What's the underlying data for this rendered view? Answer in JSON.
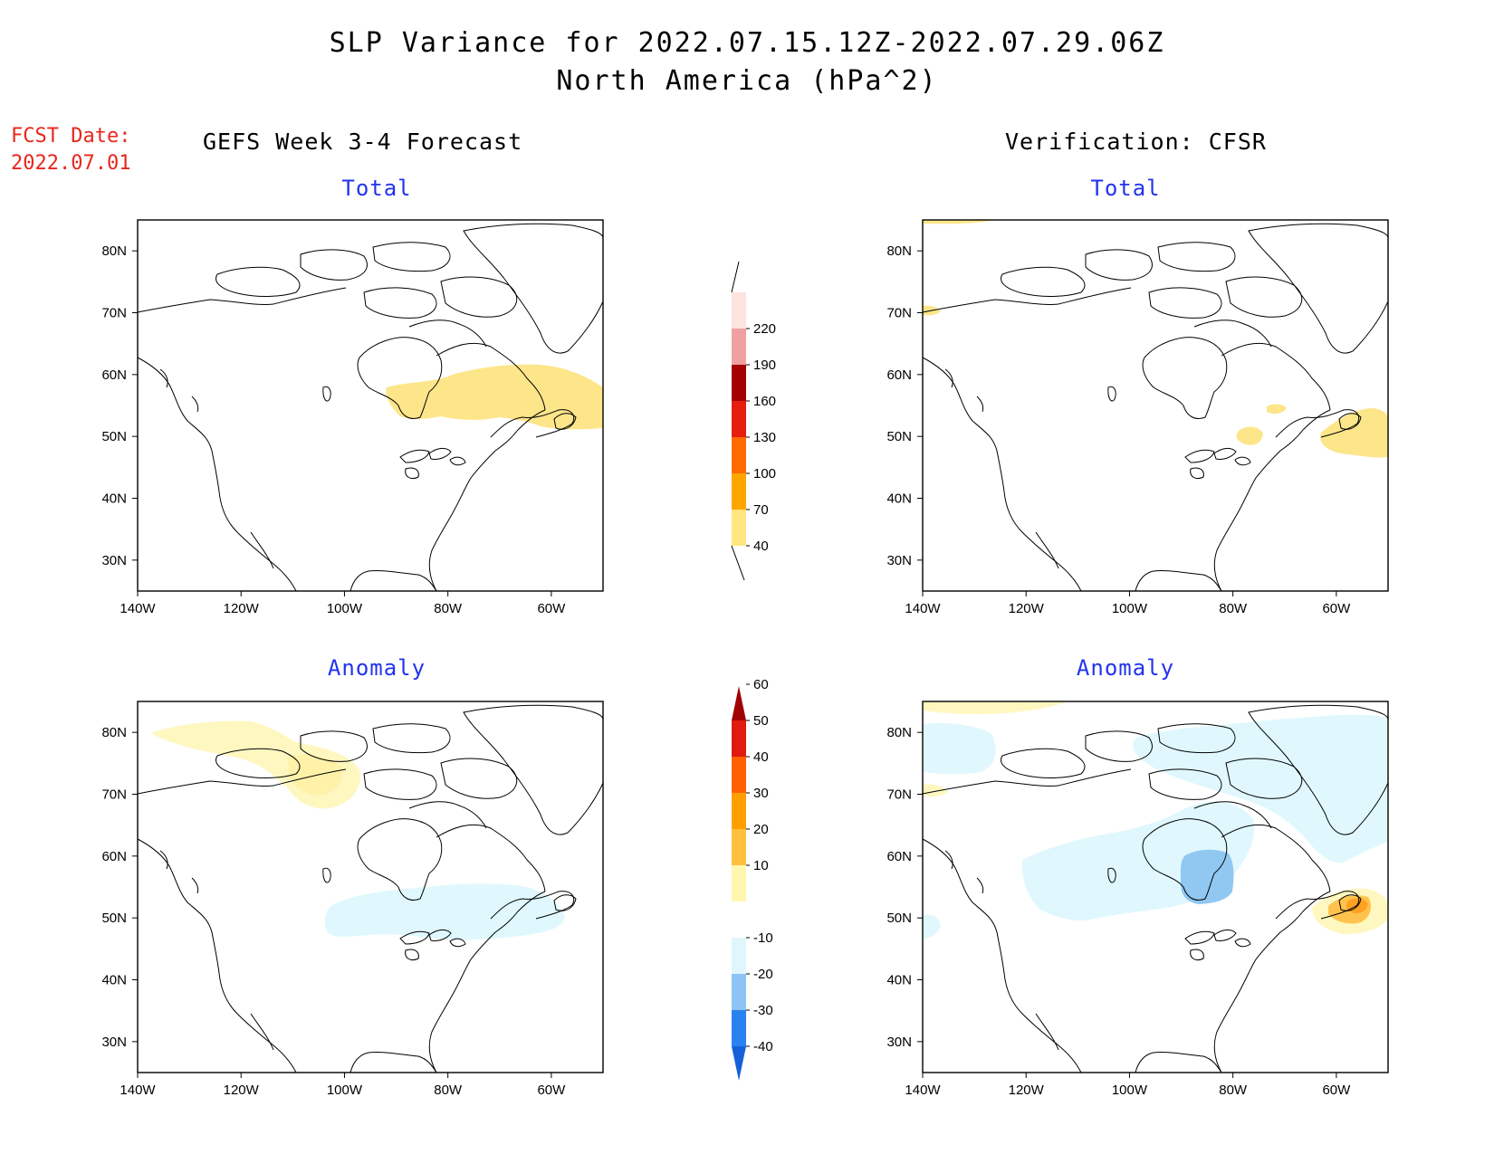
{
  "title": {
    "line1": "SLP Variance for 2022.07.15.12Z-2022.07.29.06Z",
    "line2": "North America (hPa^2)"
  },
  "forecast_date": {
    "label": "FCST Date:",
    "value": "2022.07.01"
  },
  "columns": {
    "left_heading": "GEFS Week 3-4 Forecast",
    "right_heading": "Verification: CFSR"
  },
  "panel_titles": {
    "total": "Total",
    "anomaly": "Anomaly"
  },
  "map": {
    "lon_labels": [
      "140W",
      "120W",
      "100W",
      "80W",
      "60W"
    ],
    "lat_labels": [
      "80N",
      "70N",
      "60N",
      "50N",
      "40N",
      "30N"
    ],
    "lon_values": [
      -140,
      -120,
      -100,
      -80,
      -60
    ],
    "lat_values": [
      80,
      70,
      60,
      50,
      40,
      30
    ],
    "lon_range": [
      -140,
      -50
    ],
    "lat_range": [
      25,
      85
    ]
  },
  "colorbars": {
    "total": {
      "labels": [
        "40",
        "70",
        "100",
        "130",
        "160",
        "190",
        "220"
      ],
      "colors": [
        "#ffe680",
        "#ffa500",
        "#ff6a00",
        "#e61e10",
        "#a50000",
        "#f0a0a0",
        "#fde4e0"
      ]
    },
    "anomaly": {
      "labels": [
        "-40",
        "-30",
        "-20",
        "-10",
        "10",
        "20",
        "30",
        "40",
        "50",
        "60"
      ],
      "colors_low_to_high": [
        "#1560d8",
        "#2a82f0",
        "#8cc4f5",
        "#dff6fc",
        "#ffffff",
        "#fff7b0",
        "#ffc040",
        "#ffa000",
        "#ff6000",
        "#e01a10",
        "#a00000"
      ]
    }
  },
  "shading_colors": {
    "total_40_70": "#fde68a",
    "anom_10_20": "#fff7c0",
    "anom_20_30": "#ffc34d",
    "anom_30_40": "#ffa020",
    "anom_neg10_neg20": "#e0f8fd",
    "anom_neg20_neg30": "#90c8f2"
  }
}
